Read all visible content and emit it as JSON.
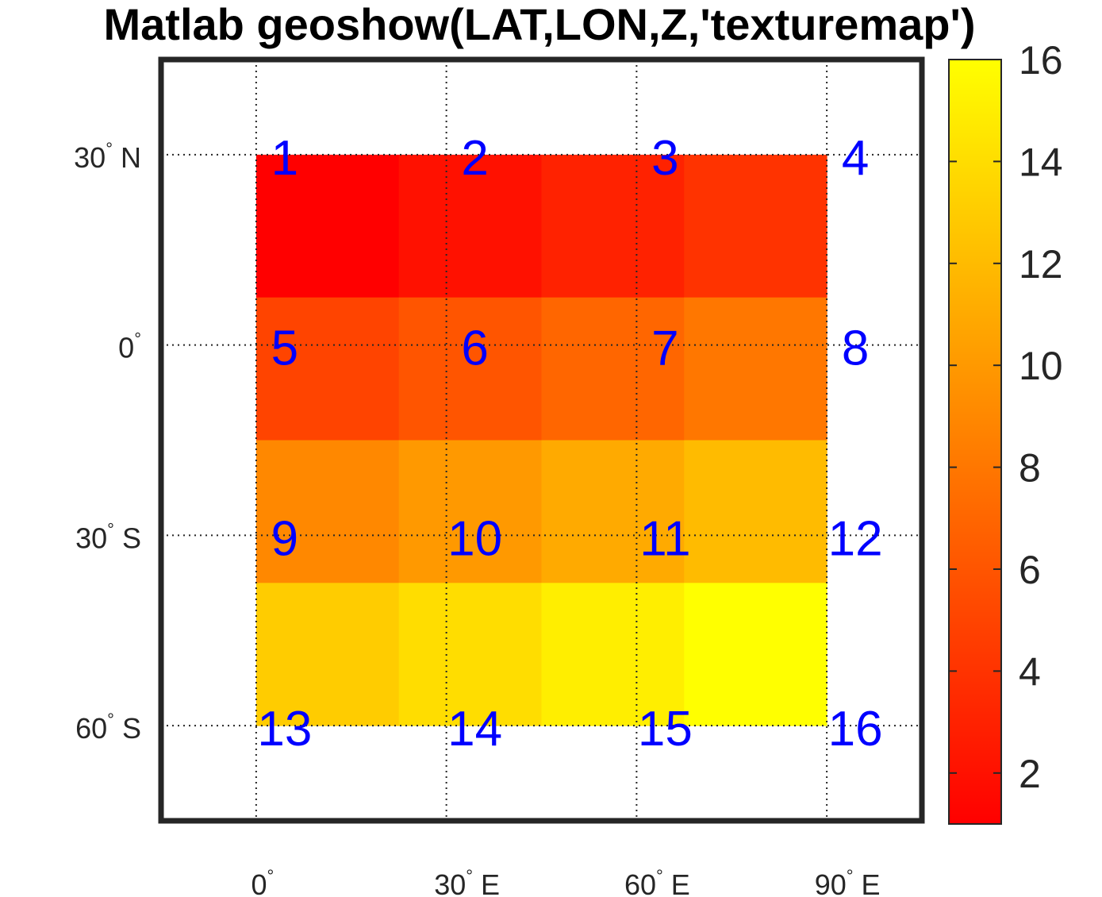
{
  "chart_data": {
    "type": "heatmap",
    "title": "Matlab geoshow(LAT,LON,Z,'texturemap')",
    "lat_ticks": [
      {
        "value": 30,
        "label": "30",
        "hemi": "N"
      },
      {
        "value": 0,
        "label": "0",
        "hemi": ""
      },
      {
        "value": -30,
        "label": "30",
        "hemi": "S"
      },
      {
        "value": -60,
        "label": "60",
        "hemi": "S"
      }
    ],
    "lon_ticks": [
      {
        "value": 0,
        "label": "0",
        "hemi": ""
      },
      {
        "value": 30,
        "label": "30",
        "hemi": "E"
      },
      {
        "value": 60,
        "label": "60",
        "hemi": "E"
      },
      {
        "value": 90,
        "label": "90",
        "hemi": "E"
      }
    ],
    "degree_symbol": "°",
    "lon_range": [
      -15,
      105
    ],
    "lat_range": [
      -75,
      45
    ],
    "grid": true,
    "z": [
      [
        1,
        2,
        3,
        4
      ],
      [
        5,
        6,
        7,
        8
      ],
      [
        9,
        10,
        11,
        12
      ],
      [
        13,
        14,
        15,
        16
      ]
    ],
    "point_labels": [
      {
        "lat": 30,
        "lon": 0,
        "text": "1"
      },
      {
        "lat": 30,
        "lon": 30,
        "text": "2"
      },
      {
        "lat": 30,
        "lon": 60,
        "text": "3"
      },
      {
        "lat": 30,
        "lon": 90,
        "text": "4"
      },
      {
        "lat": 0,
        "lon": 0,
        "text": "5"
      },
      {
        "lat": 0,
        "lon": 30,
        "text": "6"
      },
      {
        "lat": 0,
        "lon": 60,
        "text": "7"
      },
      {
        "lat": 0,
        "lon": 90,
        "text": "8"
      },
      {
        "lat": -30,
        "lon": 0,
        "text": "9"
      },
      {
        "lat": -30,
        "lon": 30,
        "text": "10"
      },
      {
        "lat": -30,
        "lon": 60,
        "text": "11"
      },
      {
        "lat": -30,
        "lon": 90,
        "text": "12"
      },
      {
        "lat": -60,
        "lon": 0,
        "text": "13"
      },
      {
        "lat": -60,
        "lon": 30,
        "text": "14"
      },
      {
        "lat": -60,
        "lon": 60,
        "text": "15"
      },
      {
        "lat": -60,
        "lon": 90,
        "text": "16"
      }
    ],
    "colormap": "autumn",
    "colormap_colors": [
      "#ff0000",
      "#ffff00"
    ],
    "colorbar": {
      "range": [
        1,
        16
      ],
      "ticks": [
        2,
        4,
        6,
        8,
        10,
        12,
        14,
        16
      ],
      "location": "right"
    },
    "label_color": "#0000ff"
  }
}
